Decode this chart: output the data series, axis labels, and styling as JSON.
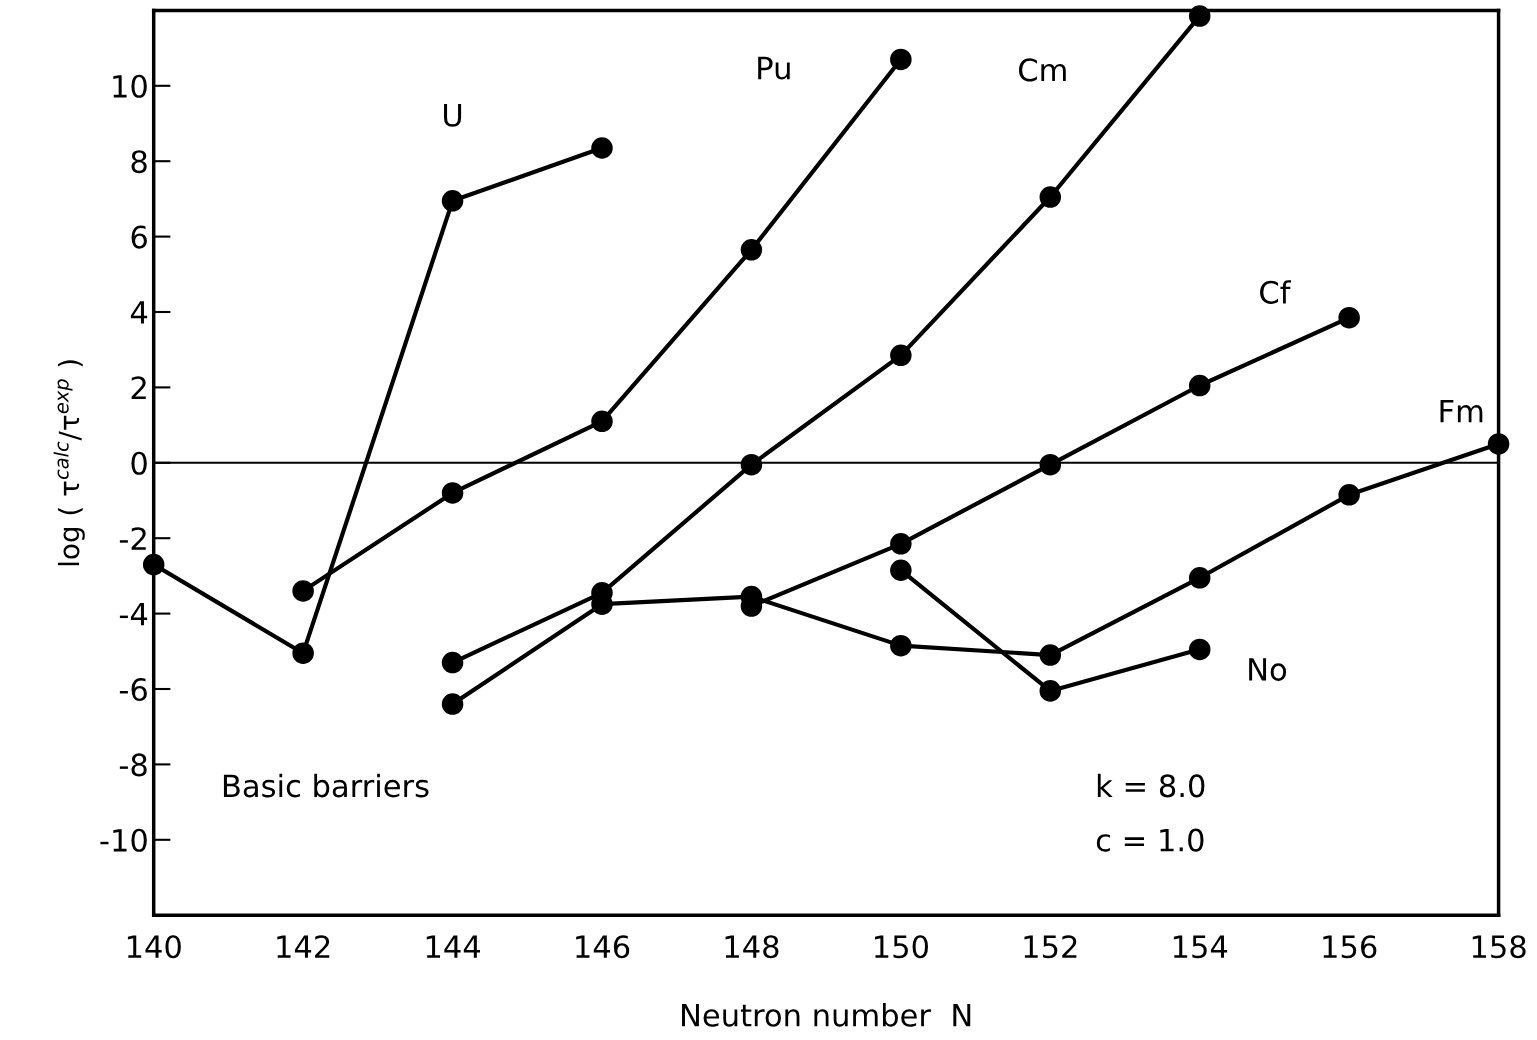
{
  "chart_data": {
    "type": "line",
    "xlabel": "Neutron number  N",
    "ylabel": "log ( τ$^{calc}$/τ$^{exp}$ )",
    "xlim": [
      140,
      158
    ],
    "xticks": [
      140,
      142,
      144,
      146,
      148,
      150,
      152,
      154,
      156,
      158
    ],
    "ylim": [
      -12,
      12
    ],
    "yticks": [
      -10,
      -8,
      -6,
      -4,
      -2,
      0,
      2,
      4,
      6,
      8,
      10
    ],
    "marker": "circle",
    "line_style": "solid",
    "grid": false,
    "legend": false,
    "ref_lines": [
      {
        "axis": "y",
        "value": 0,
        "color": "#000000"
      }
    ],
    "annotations": [
      "Basic barriers",
      "k = 8.0",
      "c = 1.0"
    ],
    "series": [
      {
        "name": "U",
        "color": "#000000",
        "x": [
          140,
          142,
          144,
          146
        ],
        "values": [
          -2.7,
          -5.05,
          6.95,
          8.35
        ]
      },
      {
        "name": "Pu",
        "color": "#000000",
        "x": [
          142,
          144,
          146,
          148,
          150
        ],
        "values": [
          -3.4,
          -0.8,
          1.1,
          5.65,
          10.7
        ]
      },
      {
        "name": "Cm",
        "color": "#000000",
        "x": [
          144,
          146,
          148,
          150,
          152,
          154
        ],
        "values": [
          -5.3,
          -3.45,
          -0.05,
          2.85,
          7.05,
          11.85
        ]
      },
      {
        "name": "Cf",
        "color": "#000000",
        "x": [
          148,
          150,
          152,
          154,
          156
        ],
        "values": [
          -3.8,
          -2.15,
          -0.05,
          2.05,
          3.85
        ]
      },
      {
        "name": "Fm",
        "color": "#000000",
        "x": [
          144,
          146,
          148,
          150,
          152,
          154,
          156,
          158
        ],
        "values": [
          -6.4,
          -3.75,
          -3.55,
          -4.85,
          -5.1,
          -3.05,
          -0.85,
          0.5
        ]
      },
      {
        "name": "No",
        "color": "#000000",
        "x": [
          150,
          152,
          154
        ],
        "values": [
          -2.85,
          -6.05,
          -4.95
        ]
      }
    ]
  }
}
